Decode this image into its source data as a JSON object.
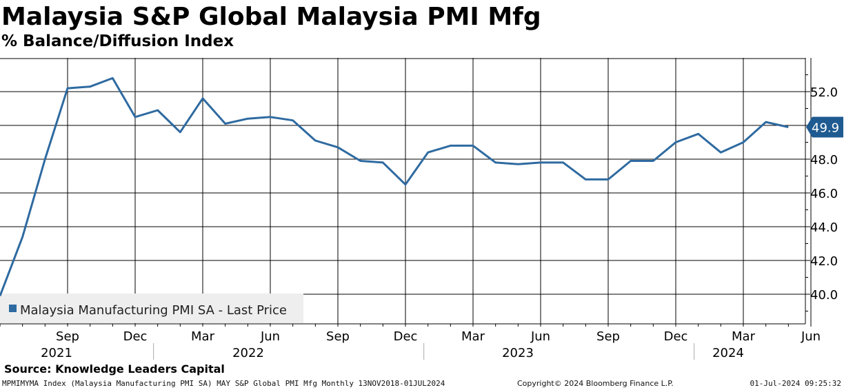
{
  "chart_data": {
    "type": "line",
    "title": "Malaysia S&P Global Malaysia PMI Mfg",
    "subtitle": "% Balance/Diffusion Index",
    "x": [
      "2021-06",
      "2021-07",
      "2021-08",
      "2021-09",
      "2021-10",
      "2021-11",
      "2021-12",
      "2022-01",
      "2022-02",
      "2022-03",
      "2022-04",
      "2022-05",
      "2022-06",
      "2022-07",
      "2022-08",
      "2022-09",
      "2022-10",
      "2022-11",
      "2022-12",
      "2023-01",
      "2023-02",
      "2023-03",
      "2023-04",
      "2023-05",
      "2023-06",
      "2023-07",
      "2023-08",
      "2023-09",
      "2023-10",
      "2023-11",
      "2023-12",
      "2024-01",
      "2024-02",
      "2024-03",
      "2024-04",
      "2024-05",
      "2024-06"
    ],
    "series": [
      {
        "name": "Malaysia Manufacturing PMI SA - Last Price",
        "color": "#2e6aa0",
        "values": [
          39.9,
          43.4,
          48.0,
          52.2,
          52.3,
          52.8,
          50.5,
          50.9,
          49.6,
          51.6,
          50.1,
          50.4,
          50.5,
          50.3,
          49.1,
          48.7,
          47.9,
          47.8,
          46.5,
          48.4,
          48.8,
          48.8,
          47.8,
          47.7,
          47.8,
          47.8,
          46.8,
          46.8,
          47.9,
          47.9,
          49.0,
          49.5,
          48.4,
          49.0,
          50.2,
          49.9,
          null
        ]
      }
    ],
    "last_value_label": "49.9",
    "ylim": [
      38.5,
      54
    ],
    "y_ticks": [
      "40.0",
      "42.0",
      "44.0",
      "46.0",
      "48.0",
      "52.0"
    ],
    "x_month_labels": [
      "Sep",
      "Dec",
      "Mar",
      "Jun",
      "Sep",
      "Dec",
      "Mar",
      "Jun",
      "Sep",
      "Dec",
      "Mar",
      "Jun"
    ],
    "x_year_labels": [
      "2021",
      "2022",
      "2023",
      "2024"
    ],
    "legend": "Malaysia Manufacturing PMI SA - Last Price",
    "legend_position": "bottom-left",
    "grid": true
  },
  "source": "Source: Knowledge Leaders Capital",
  "footer": {
    "left": "MPMIMYMA Index (Malaysia Manufacturing PMI SA) MAY S&P Global PMI Mfg  Monthly 13NOV2018-01JUL2024",
    "center": "Copyright© 2024 Bloomberg Finance L.P.",
    "right": "01-Jul-2024 09:25:32"
  }
}
